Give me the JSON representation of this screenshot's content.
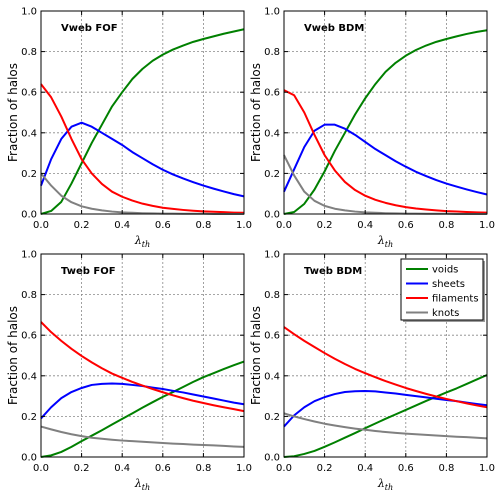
{
  "chart_data": {
    "legend": [
      {
        "name": "voids",
        "color": "#008000"
      },
      {
        "name": "sheets",
        "color": "#0000ff"
      },
      {
        "name": "filaments",
        "color": "#ff0000"
      },
      {
        "name": "knots",
        "color": "#808080"
      }
    ],
    "legend_position": "bottom-right panel, top-right",
    "legend_panel": 3,
    "panels": [
      {
        "type": "line",
        "title": "Vweb FOF",
        "xlabel": "λ_th",
        "ylabel": "Fraction of halos",
        "xlim": [
          0,
          1
        ],
        "ylim": [
          0,
          1
        ],
        "xticks": [
          "0.0",
          "0.2",
          "0.4",
          "0.6",
          "0.8",
          "1.0"
        ],
        "yticks": [
          "0.0",
          "0.2",
          "0.4",
          "0.6",
          "0.8",
          "1.0"
        ],
        "grid": true,
        "x": [
          0,
          0.05,
          0.1,
          0.15,
          0.2,
          0.25,
          0.3,
          0.35,
          0.4,
          0.45,
          0.5,
          0.55,
          0.6,
          0.65,
          0.7,
          0.75,
          0.8,
          0.85,
          0.9,
          0.95,
          1.0
        ],
        "series": [
          {
            "name": "voids",
            "values": [
              0.0,
              0.015,
              0.06,
              0.15,
              0.25,
              0.35,
              0.44,
              0.53,
              0.6,
              0.665,
              0.715,
              0.755,
              0.785,
              0.81,
              0.83,
              0.848,
              0.862,
              0.875,
              0.888,
              0.899,
              0.91
            ]
          },
          {
            "name": "sheets",
            "values": [
              0.14,
              0.27,
              0.37,
              0.43,
              0.45,
              0.43,
              0.4,
              0.37,
              0.34,
              0.305,
              0.275,
              0.245,
              0.218,
              0.195,
              0.175,
              0.157,
              0.14,
              0.125,
              0.111,
              0.098,
              0.087
            ]
          },
          {
            "name": "filaments",
            "values": [
              0.64,
              0.575,
              0.48,
              0.37,
              0.27,
              0.2,
              0.148,
              0.11,
              0.085,
              0.066,
              0.051,
              0.04,
              0.031,
              0.025,
              0.02,
              0.016,
              0.013,
              0.011,
              0.009,
              0.007,
              0.006
            ]
          },
          {
            "name": "knots",
            "values": [
              0.2,
              0.14,
              0.09,
              0.058,
              0.038,
              0.026,
              0.018,
              0.012,
              0.008,
              0.006,
              0.004,
              0.003,
              0.002,
              0.002,
              0.001,
              0.001,
              0.001,
              0.0,
              0.0,
              0.0,
              0.0
            ]
          }
        ]
      },
      {
        "type": "line",
        "title": "Vweb BDM",
        "xlabel": "λ_th",
        "ylabel": "Fraction of halos",
        "xlim": [
          0,
          1
        ],
        "ylim": [
          0,
          1
        ],
        "xticks": [
          "0.0",
          "0.2",
          "0.4",
          "0.6",
          "0.8",
          "1.0"
        ],
        "yticks": [
          "0.0",
          "0.2",
          "0.4",
          "0.6",
          "0.8",
          "1.0"
        ],
        "grid": true,
        "x": [
          0,
          0.05,
          0.1,
          0.15,
          0.2,
          0.25,
          0.3,
          0.35,
          0.4,
          0.45,
          0.5,
          0.55,
          0.6,
          0.65,
          0.7,
          0.75,
          0.8,
          0.85,
          0.9,
          0.95,
          1.0
        ],
        "series": [
          {
            "name": "voids",
            "values": [
              0.0,
              0.01,
              0.05,
              0.12,
              0.21,
              0.31,
              0.4,
              0.49,
              0.57,
              0.64,
              0.7,
              0.745,
              0.78,
              0.808,
              0.83,
              0.848,
              0.862,
              0.875,
              0.887,
              0.897,
              0.905
            ]
          },
          {
            "name": "sheets",
            "values": [
              0.11,
              0.22,
              0.33,
              0.41,
              0.44,
              0.44,
              0.42,
              0.39,
              0.355,
              0.32,
              0.29,
              0.26,
              0.233,
              0.208,
              0.187,
              0.167,
              0.15,
              0.135,
              0.121,
              0.108,
              0.096
            ]
          },
          {
            "name": "filaments",
            "values": [
              0.61,
              0.585,
              0.5,
              0.39,
              0.29,
              0.215,
              0.158,
              0.118,
              0.09,
              0.07,
              0.055,
              0.043,
              0.034,
              0.027,
              0.022,
              0.018,
              0.014,
              0.012,
              0.01,
              0.008,
              0.007
            ]
          },
          {
            "name": "knots",
            "values": [
              0.29,
              0.19,
              0.11,
              0.065,
              0.04,
              0.026,
              0.018,
              0.012,
              0.008,
              0.006,
              0.004,
              0.003,
              0.002,
              0.002,
              0.001,
              0.001,
              0.001,
              0.0,
              0.0,
              0.0,
              0.0
            ]
          }
        ]
      },
      {
        "type": "line",
        "title": "Tweb FOF",
        "xlabel": "λ_th",
        "ylabel": "Fraction of halos",
        "xlim": [
          0,
          1
        ],
        "ylim": [
          0,
          1
        ],
        "xticks": [
          "0.0",
          "0.2",
          "0.4",
          "0.6",
          "0.8",
          "1.0"
        ],
        "yticks": [
          "0.0",
          "0.2",
          "0.4",
          "0.6",
          "0.8",
          "1.0"
        ],
        "grid": true,
        "x": [
          0,
          0.05,
          0.1,
          0.15,
          0.2,
          0.25,
          0.3,
          0.35,
          0.4,
          0.45,
          0.5,
          0.55,
          0.6,
          0.65,
          0.7,
          0.75,
          0.8,
          0.85,
          0.9,
          0.95,
          1.0
        ],
        "series": [
          {
            "name": "voids",
            "values": [
              0.0,
              0.008,
              0.025,
              0.05,
              0.078,
              0.105,
              0.132,
              0.16,
              0.188,
              0.215,
              0.243,
              0.27,
              0.296,
              0.32,
              0.345,
              0.37,
              0.393,
              0.413,
              0.433,
              0.452,
              0.47
            ]
          },
          {
            "name": "sheets",
            "values": [
              0.19,
              0.245,
              0.29,
              0.32,
              0.34,
              0.355,
              0.36,
              0.362,
              0.36,
              0.355,
              0.35,
              0.342,
              0.335,
              0.326,
              0.318,
              0.308,
              0.298,
              0.288,
              0.278,
              0.268,
              0.26
            ]
          },
          {
            "name": "filaments",
            "values": [
              0.665,
              0.615,
              0.572,
              0.533,
              0.498,
              0.466,
              0.437,
              0.411,
              0.39,
              0.37,
              0.352,
              0.335,
              0.319,
              0.304,
              0.29,
              0.277,
              0.266,
              0.255,
              0.245,
              0.236,
              0.226
            ]
          },
          {
            "name": "knots",
            "values": [
              0.15,
              0.136,
              0.123,
              0.112,
              0.103,
              0.095,
              0.09,
              0.085,
              0.081,
              0.078,
              0.075,
              0.072,
              0.069,
              0.066,
              0.064,
              0.061,
              0.059,
              0.057,
              0.055,
              0.052,
              0.05
            ]
          }
        ]
      },
      {
        "type": "line",
        "title": "Tweb BDM",
        "xlabel": "λ_th",
        "ylabel": "Fraction of halos",
        "xlim": [
          0,
          1
        ],
        "ylim": [
          0,
          1
        ],
        "xticks": [
          "0.0",
          "0.2",
          "0.4",
          "0.6",
          "0.8",
          "1.0"
        ],
        "yticks": [
          "0.0",
          "0.2",
          "0.4",
          "0.6",
          "0.8",
          "1.0"
        ],
        "grid": true,
        "x": [
          0,
          0.05,
          0.1,
          0.15,
          0.2,
          0.25,
          0.3,
          0.35,
          0.4,
          0.45,
          0.5,
          0.55,
          0.6,
          0.65,
          0.7,
          0.75,
          0.8,
          0.85,
          0.9,
          0.95,
          1.0
        ],
        "series": [
          {
            "name": "voids",
            "values": [
              0.0,
              0.004,
              0.015,
              0.03,
              0.05,
              0.072,
              0.095,
              0.118,
              0.142,
              0.165,
              0.188,
              0.21,
              0.232,
              0.254,
              0.276,
              0.297,
              0.318,
              0.338,
              0.36,
              0.382,
              0.404
            ]
          },
          {
            "name": "sheets",
            "values": [
              0.15,
              0.205,
              0.245,
              0.275,
              0.295,
              0.31,
              0.32,
              0.324,
              0.325,
              0.323,
              0.318,
              0.313,
              0.306,
              0.3,
              0.294,
              0.287,
              0.281,
              0.275,
              0.268,
              0.261,
              0.255
            ]
          },
          {
            "name": "filaments",
            "values": [
              0.64,
              0.605,
              0.572,
              0.542,
              0.512,
              0.484,
              0.458,
              0.434,
              0.413,
              0.393,
              0.374,
              0.357,
              0.34,
              0.325,
              0.311,
              0.298,
              0.286,
              0.275,
              0.264,
              0.254,
              0.245
            ]
          },
          {
            "name": "knots",
            "values": [
              0.215,
              0.2,
              0.187,
              0.175,
              0.164,
              0.155,
              0.147,
              0.14,
              0.134,
              0.128,
              0.123,
              0.119,
              0.115,
              0.112,
              0.109,
              0.106,
              0.103,
              0.1,
              0.098,
              0.095,
              0.092
            ]
          }
        ]
      }
    ]
  }
}
